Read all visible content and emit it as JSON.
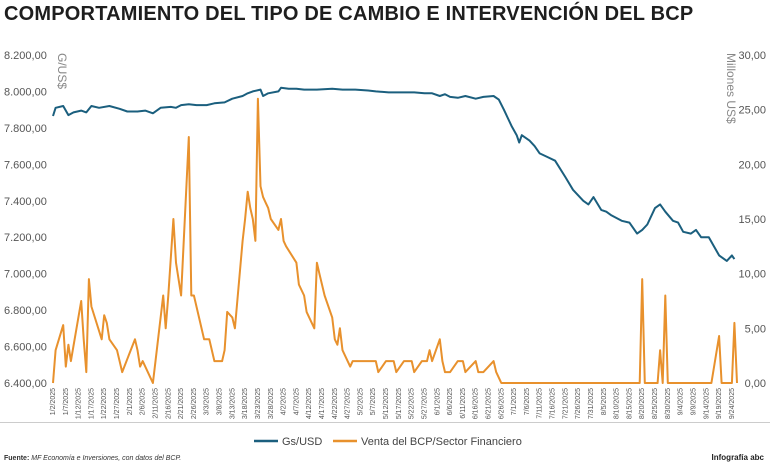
{
  "title": "COMPORTAMIENTO DEL TIPO DE CAMBIO E INTERVENCIÓN DEL BCP",
  "footer": {
    "source_label": "Fuente:",
    "source_text": "MF Economía e Inversiones, con datos del BCP.",
    "credit_label": "Infografía",
    "credit_brand": "abc"
  },
  "chart_data": {
    "type": "line",
    "title": "COMPORTAMIENTO DEL TIPO DE CAMBIO E INTERVENCIÓN DEL BCP",
    "ylabel_left": "G/US$",
    "ylabel_right": "Millones US$",
    "ylim_left": [
      6400,
      8200
    ],
    "ylim_right": [
      0,
      30
    ],
    "yticks_left": [
      "8.200,00",
      "8.000,00",
      "7.800,00",
      "7.600,00",
      "7.400,00",
      "7.200,00",
      "7.000,00",
      "6.800,00",
      "6.600,00",
      "6.400,00"
    ],
    "yticks_right": [
      "30,00",
      "25,00",
      "20,00",
      "15,00",
      "10,00",
      "5,00",
      "0,00"
    ],
    "x_start": "1/2/2025",
    "x_end": "9/26/2025",
    "xticks": [
      "1/2/2025",
      "1/7/2025",
      "1/12/2025",
      "1/17/2025",
      "1/22/2025",
      "1/27/2025",
      "2/1/2025",
      "2/6/2025",
      "2/11/2025",
      "2/16/2025",
      "2/21/2025",
      "2/26/2025",
      "3/3/2025",
      "3/8/2025",
      "3/13/2025",
      "3/18/2025",
      "3/23/2025",
      "3/28/2025",
      "4/2/2025",
      "4/7/2025",
      "4/12/2025",
      "4/17/2025",
      "4/22/2025",
      "4/27/2025",
      "5/2/2025",
      "5/7/2025",
      "5/12/2025",
      "5/17/2025",
      "5/22/2025",
      "5/27/2025",
      "6/1/2025",
      "6/6/2025",
      "6/11/2025",
      "6/16/2025",
      "6/21/2025",
      "6/26/2025",
      "7/1/2025",
      "7/6/2025",
      "7/11/2025",
      "7/16/2025",
      "7/21/2025",
      "7/26/2025",
      "7/31/2025",
      "8/5/2025",
      "8/10/2025",
      "8/15/2025",
      "8/20/2025",
      "8/25/2025",
      "8/30/2025",
      "9/4/2025",
      "9/9/2025",
      "9/14/2025",
      "9/19/2025",
      "9/24/2025"
    ],
    "legend_position": "bottom",
    "grid": false,
    "series": [
      {
        "name": "Gs/USD",
        "axis": "left",
        "color": "#1b5f7e",
        "points": [
          [
            "1/2/2025",
            7865
          ],
          [
            "1/3/2025",
            7910
          ],
          [
            "1/6/2025",
            7920
          ],
          [
            "1/8/2025",
            7870
          ],
          [
            "1/10/2025",
            7885
          ],
          [
            "1/13/2025",
            7895
          ],
          [
            "1/15/2025",
            7885
          ],
          [
            "1/17/2025",
            7920
          ],
          [
            "1/20/2025",
            7910
          ],
          [
            "1/24/2025",
            7920
          ],
          [
            "1/28/2025",
            7905
          ],
          [
            "1/31/2025",
            7890
          ],
          [
            "2/4/2025",
            7890
          ],
          [
            "2/7/2025",
            7895
          ],
          [
            "2/10/2025",
            7880
          ],
          [
            "2/13/2025",
            7910
          ],
          [
            "2/17/2025",
            7915
          ],
          [
            "2/19/2025",
            7910
          ],
          [
            "2/21/2025",
            7925
          ],
          [
            "2/24/2025",
            7930
          ],
          [
            "2/27/2025",
            7925
          ],
          [
            "3/3/2025",
            7925
          ],
          [
            "3/6/2025",
            7935
          ],
          [
            "3/10/2025",
            7940
          ],
          [
            "3/13/2025",
            7960
          ],
          [
            "3/17/2025",
            7975
          ],
          [
            "3/19/2025",
            7990
          ],
          [
            "3/21/2025",
            8000
          ],
          [
            "3/24/2025",
            8010
          ],
          [
            "3/25/2025",
            7975
          ],
          [
            "3/27/2025",
            7990
          ],
          [
            "3/31/2025",
            8000
          ],
          [
            "4/1/2025",
            8020
          ],
          [
            "4/4/2025",
            8015
          ],
          [
            "4/7/2025",
            8015
          ],
          [
            "4/10/2025",
            8010
          ],
          [
            "4/15/2025",
            8010
          ],
          [
            "4/21/2025",
            8015
          ],
          [
            "4/25/2025",
            8010
          ],
          [
            "4/30/2025",
            8010
          ],
          [
            "5/5/2025",
            8005
          ],
          [
            "5/8/2025",
            8000
          ],
          [
            "5/13/2025",
            7995
          ],
          [
            "5/19/2025",
            7995
          ],
          [
            "5/23/2025",
            7995
          ],
          [
            "5/27/2025",
            7990
          ],
          [
            "5/30/2025",
            7990
          ],
          [
            "6/2/2025",
            7975
          ],
          [
            "6/4/2025",
            7985
          ],
          [
            "6/6/2025",
            7970
          ],
          [
            "6/9/2025",
            7965
          ],
          [
            "6/12/2025",
            7975
          ],
          [
            "6/16/2025",
            7960
          ],
          [
            "6/19/2025",
            7970
          ],
          [
            "6/23/2025",
            7975
          ],
          [
            "6/25/2025",
            7955
          ],
          [
            "6/27/2025",
            7900
          ],
          [
            "6/30/2025",
            7810
          ],
          [
            "7/2/2025",
            7760
          ],
          [
            "7/3/2025",
            7720
          ],
          [
            "7/4/2025",
            7760
          ],
          [
            "7/7/2025",
            7730
          ],
          [
            "7/9/2025",
            7700
          ],
          [
            "7/11/2025",
            7660
          ],
          [
            "7/14/2025",
            7640
          ],
          [
            "7/17/2025",
            7620
          ],
          [
            "7/21/2025",
            7530
          ],
          [
            "7/24/2025",
            7460
          ],
          [
            "7/28/2025",
            7400
          ],
          [
            "7/30/2025",
            7380
          ],
          [
            "8/1/2025",
            7420
          ],
          [
            "8/4/2025",
            7350
          ],
          [
            "8/6/2025",
            7340
          ],
          [
            "8/8/2025",
            7320
          ],
          [
            "8/12/2025",
            7290
          ],
          [
            "8/15/2025",
            7280
          ],
          [
            "8/18/2025",
            7220
          ],
          [
            "8/20/2025",
            7240
          ],
          [
            "8/22/2025",
            7270
          ],
          [
            "8/25/2025",
            7360
          ],
          [
            "8/27/2025",
            7380
          ],
          [
            "8/29/2025",
            7340
          ],
          [
            "9/1/2025",
            7290
          ],
          [
            "9/3/2025",
            7280
          ],
          [
            "9/5/2025",
            7230
          ],
          [
            "9/8/2025",
            7220
          ],
          [
            "9/10/2025",
            7240
          ],
          [
            "9/12/2025",
            7200
          ],
          [
            "9/15/2025",
            7200
          ],
          [
            "9/17/2025",
            7150
          ],
          [
            "9/19/2025",
            7100
          ],
          [
            "9/22/2025",
            7070
          ],
          [
            "9/24/2025",
            7100
          ],
          [
            "9/25/2025",
            7080
          ]
        ]
      },
      {
        "name": "Venta del BCP/Sector Financiero",
        "axis": "right",
        "color": "#e8912d",
        "points": [
          [
            "1/2/2025",
            0.0
          ],
          [
            "1/3/2025",
            3.0
          ],
          [
            "1/6/2025",
            5.3
          ],
          [
            "1/7/2025",
            1.5
          ],
          [
            "1/8/2025",
            3.5
          ],
          [
            "1/9/2025",
            2.0
          ],
          [
            "1/13/2025",
            7.5
          ],
          [
            "1/14/2025",
            4.0
          ],
          [
            "1/15/2025",
            1.0
          ],
          [
            "1/16/2025",
            9.5
          ],
          [
            "1/17/2025",
            7.0
          ],
          [
            "1/21/2025",
            4.0
          ],
          [
            "1/22/2025",
            6.2
          ],
          [
            "1/23/2025",
            5.5
          ],
          [
            "1/24/2025",
            4.0
          ],
          [
            "1/27/2025",
            3.0
          ],
          [
            "1/28/2025",
            2.0
          ],
          [
            "1/29/2025",
            1.0
          ],
          [
            "2/3/2025",
            4.0
          ],
          [
            "2/4/2025",
            3.0
          ],
          [
            "2/5/2025",
            1.5
          ],
          [
            "2/6/2025",
            2.0
          ],
          [
            "2/10/2025",
            0.0
          ],
          [
            "2/11/2025",
            2.0
          ],
          [
            "2/14/2025",
            8.0
          ],
          [
            "2/15/2025",
            5.0
          ],
          [
            "2/16/2025",
            8.0
          ],
          [
            "2/18/2025",
            15.0
          ],
          [
            "2/19/2025",
            11.0
          ],
          [
            "2/21/2025",
            8.0
          ],
          [
            "2/24/2025",
            22.5
          ],
          [
            "2/25/2025",
            8.0
          ],
          [
            "2/26/2025",
            8.0
          ],
          [
            "2/28/2025",
            6.0
          ],
          [
            "3/2/2025",
            4.0
          ],
          [
            "3/4/2025",
            4.0
          ],
          [
            "3/6/2025",
            2.0
          ],
          [
            "3/9/2025",
            2.0
          ],
          [
            "3/10/2025",
            3.0
          ],
          [
            "3/11/2025",
            6.5
          ],
          [
            "3/13/2025",
            6.0
          ],
          [
            "3/14/2025",
            5.0
          ],
          [
            "3/17/2025",
            13.0
          ],
          [
            "3/18/2025",
            15.0
          ],
          [
            "3/19/2025",
            17.5
          ],
          [
            "3/20/2025",
            16.0
          ],
          [
            "3/21/2025",
            15.0
          ],
          [
            "3/22/2025",
            13.0
          ],
          [
            "3/23/2025",
            26.0
          ],
          [
            "3/24/2025",
            18.0
          ],
          [
            "3/25/2025",
            17.0
          ],
          [
            "3/26/2025",
            16.5
          ],
          [
            "3/27/2025",
            16.0
          ],
          [
            "3/28/2025",
            15.0
          ],
          [
            "3/31/2025",
            14.0
          ],
          [
            "4/1/2025",
            15.0
          ],
          [
            "4/2/2025",
            13.0
          ],
          [
            "4/3/2025",
            12.5
          ],
          [
            "4/7/2025",
            11.0
          ],
          [
            "4/8/2025",
            9.0
          ],
          [
            "4/10/2025",
            8.0
          ],
          [
            "4/11/2025",
            6.5
          ],
          [
            "4/14/2025",
            5.0
          ],
          [
            "4/15/2025",
            11.0
          ],
          [
            "4/16/2025",
            10.0
          ],
          [
            "4/18/2025",
            8.0
          ],
          [
            "4/21/2025",
            6.0
          ],
          [
            "4/22/2025",
            4.0
          ],
          [
            "4/23/2025",
            3.5
          ],
          [
            "4/24/2025",
            5.0
          ],
          [
            "4/25/2025",
            3.0
          ],
          [
            "4/28/2025",
            1.5
          ],
          [
            "4/29/2025",
            2.0
          ],
          [
            "4/30/2025",
            2.0
          ],
          [
            "5/5/2025",
            2.0
          ],
          [
            "5/8/2025",
            2.0
          ],
          [
            "5/9/2025",
            1.0
          ],
          [
            "5/12/2025",
            2.0
          ],
          [
            "5/15/2025",
            2.0
          ],
          [
            "5/16/2025",
            1.0
          ],
          [
            "5/19/2025",
            2.0
          ],
          [
            "5/22/2025",
            2.0
          ],
          [
            "5/23/2025",
            1.0
          ],
          [
            "5/26/2025",
            2.0
          ],
          [
            "5/28/2025",
            2.0
          ],
          [
            "5/29/2025",
            3.0
          ],
          [
            "5/30/2025",
            2.0
          ],
          [
            "6/2/2025",
            4.0
          ],
          [
            "6/3/2025",
            2.0
          ],
          [
            "6/4/2025",
            1.0
          ],
          [
            "6/6/2025",
            1.0
          ],
          [
            "6/9/2025",
            2.0
          ],
          [
            "6/11/2025",
            2.0
          ],
          [
            "6/12/2025",
            1.0
          ],
          [
            "6/16/2025",
            2.0
          ],
          [
            "6/17/2025",
            1.0
          ],
          [
            "6/19/2025",
            1.0
          ],
          [
            "6/23/2025",
            2.0
          ],
          [
            "6/24/2025",
            1.0
          ],
          [
            "6/26/2025",
            0.0
          ],
          [
            "8/19/2025",
            0.0
          ],
          [
            "8/20/2025",
            9.5
          ],
          [
            "8/21/2025",
            0.0
          ],
          [
            "8/26/2025",
            0.0
          ],
          [
            "8/27/2025",
            3.0
          ],
          [
            "8/28/2025",
            0.0
          ],
          [
            "8/29/2025",
            8.0
          ],
          [
            "8/30/2025",
            0.0
          ],
          [
            "9/16/2025",
            0.0
          ],
          [
            "9/19/2025",
            4.3
          ],
          [
            "9/20/2025",
            0.0
          ],
          [
            "9/24/2025",
            0.0
          ],
          [
            "9/25/2025",
            5.5
          ],
          [
            "9/26/2025",
            0.0
          ]
        ]
      }
    ]
  }
}
